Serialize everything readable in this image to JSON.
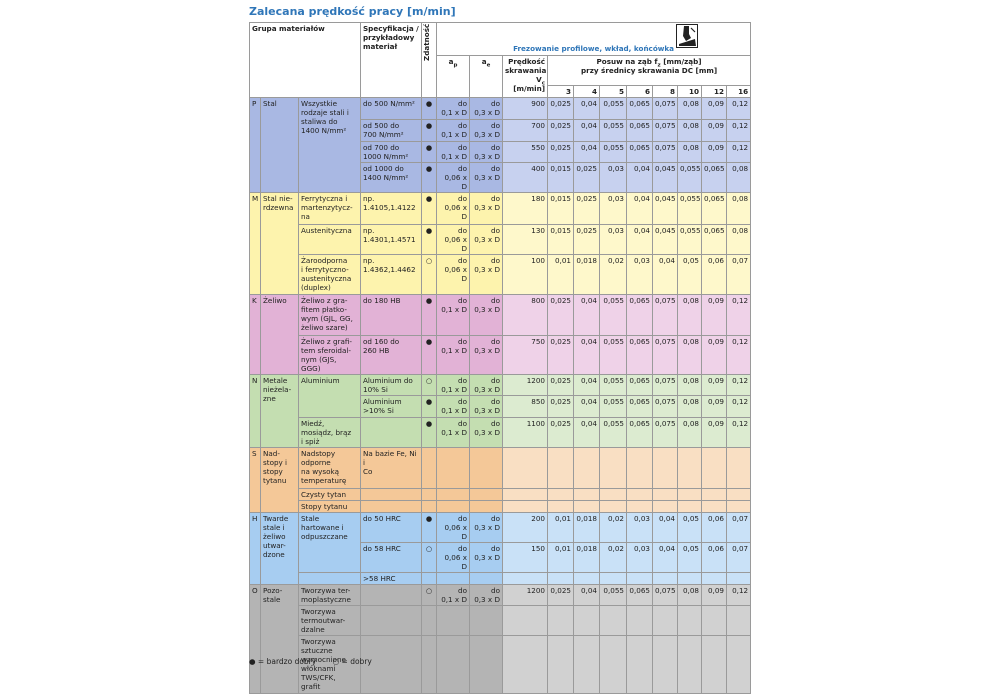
{
  "title": "Zalecana prędkość pracy [m/min]",
  "header": {
    "group": "Grupa materiałów",
    "spec": "Specyfikacja /\nprzykładowy\nmateriał",
    "suitability": "Zdatność",
    "operation": "Frezowanie profilowe, wkład, końcówka",
    "ap": {
      "main": "a",
      "sub": "p"
    },
    "ae": {
      "main": "a",
      "sub": "e"
    },
    "vc": {
      "line1": "Prędkość\nskrawania",
      "main": "V",
      "sub": "c",
      "unit": "[m/min]"
    },
    "feed": {
      "pre": "Posuw na ząb f",
      "sub": "z",
      "post": " [mm/ząb]",
      "line2": "przy średnicy skrawania DC [mm]"
    },
    "diameters": [
      3,
      4,
      5,
      6,
      8,
      10,
      12,
      16
    ]
  },
  "groups": [
    {
      "letter": "P",
      "name": "Stal",
      "color": "#a9b8e3",
      "light": "#c7d1ef",
      "subgroups": [
        {
          "name": "Wszystkie\nrodzaje stali i\nstaliwa do\n1400 N/mm²",
          "rows": [
            {
              "spec": "do 500 N/mm²",
              "suit": "●",
              "ap": "do\n0,1 x D",
              "ae": "do\n0,3 x D",
              "vc": 900,
              "fz": [
                "0,025",
                "0,04",
                "0,055",
                "0,065",
                "0,075",
                "0,08",
                "0,09",
                "0,12"
              ]
            },
            {
              "spec": "od 500 do\n700 N/mm²",
              "suit": "●",
              "ap": "do\n0,1 x D",
              "ae": "do\n0,3 x D",
              "vc": 700,
              "fz": [
                "0,025",
                "0,04",
                "0,055",
                "0,065",
                "0,075",
                "0,08",
                "0,09",
                "0,12"
              ]
            },
            {
              "spec": "od 700 do\n1000 N/mm²",
              "suit": "●",
              "ap": "do\n0,1 x D",
              "ae": "do\n0,3 x D",
              "vc": 550,
              "fz": [
                "0,025",
                "0,04",
                "0,055",
                "0,065",
                "0,075",
                "0,08",
                "0,09",
                "0,12"
              ]
            },
            {
              "spec": "od 1000 do\n1400 N/mm²",
              "suit": "●",
              "ap": "do\n0,06 x D",
              "ae": "do\n0,3 x D",
              "vc": 400,
              "fz": [
                "0,015",
                "0,025",
                "0,03",
                "0,04",
                "0,045",
                "0,055",
                "0,065",
                "0,08"
              ]
            }
          ]
        }
      ]
    },
    {
      "letter": "M",
      "name": "Stal nie-\nrdzewna",
      "color": "#fdf3ad",
      "light": "#fef8cb",
      "subgroups": [
        {
          "name": "Ferrytyczna i\nmartenzytycz-\nna",
          "rows": [
            {
              "spec": "np.\n1.4105,1.4122",
              "suit": "●",
              "ap": "do\n0,06 x D",
              "ae": "do\n0,3 x D",
              "vc": 180,
              "fz": [
                "0,015",
                "0,025",
                "0,03",
                "0,04",
                "0,045",
                "0,055",
                "0,065",
                "0,08"
              ]
            }
          ]
        },
        {
          "name": "Austenityczna",
          "rows": [
            {
              "spec": "np.\n1.4301,1.4571",
              "suit": "●",
              "ap": "do\n0,06 x D",
              "ae": "do\n0,3 x D",
              "vc": 130,
              "fz": [
                "0,015",
                "0,025",
                "0,03",
                "0,04",
                "0,045",
                "0,055",
                "0,065",
                "0,08"
              ]
            }
          ]
        },
        {
          "name": "Żaroodporna\ni ferrytyczno-\naustenityczna\n(duplex)",
          "rows": [
            {
              "spec": "np.\n1.4362,1.4462",
              "suit": "○",
              "ap": "do\n0,06 x D",
              "ae": "do\n0,3 x D",
              "vc": 100,
              "fz": [
                "0,01",
                "0,018",
                "0,02",
                "0,03",
                "0,04",
                "0,05",
                "0,06",
                "0,07"
              ]
            }
          ]
        }
      ]
    },
    {
      "letter": "K",
      "name": "Żeliwo",
      "color": "#e2b2d6",
      "light": "#efd2e8",
      "subgroups": [
        {
          "name": "Żeliwo z gra-\nfitem płatko-\nwym (GJL, GG,\nżeliwo szare)",
          "rows": [
            {
              "spec": "do 180 HB",
              "suit": "●",
              "ap": "do\n0,1 x D",
              "ae": "do\n0,3 x D",
              "vc": 800,
              "fz": [
                "0,025",
                "0,04",
                "0,055",
                "0,065",
                "0,075",
                "0,08",
                "0,09",
                "0,12"
              ]
            }
          ]
        },
        {
          "name": "Żeliwo z grafi-\ntem sferoidal-\nnym (GJS, GGG)",
          "rows": [
            {
              "spec": "od 160 do\n260 HB",
              "suit": "●",
              "ap": "do\n0,1 x D",
              "ae": "do\n0,3 x D",
              "vc": 750,
              "fz": [
                "0,025",
                "0,04",
                "0,055",
                "0,065",
                "0,075",
                "0,08",
                "0,09",
                "0,12"
              ]
            }
          ]
        }
      ]
    },
    {
      "letter": "N",
      "name": "Metale\nnieżela-\nzne",
      "color": "#c4deb1",
      "light": "#dcebd0",
      "subgroups": [
        {
          "name": "Aluminium",
          "rows": [
            {
              "spec": "Aluminium do\n10% Si",
              "suit": "○",
              "ap": "do\n0,1 x D",
              "ae": "do\n0,3 x D",
              "vc": 1200,
              "fz": [
                "0,025",
                "0,04",
                "0,055",
                "0,065",
                "0,075",
                "0,08",
                "0,09",
                "0,12"
              ]
            },
            {
              "spec": "Aluminium\n>10% Si",
              "suit": "●",
              "ap": "do\n0,1 x D",
              "ae": "do\n0,3 x D",
              "vc": 850,
              "fz": [
                "0,025",
                "0,04",
                "0,055",
                "0,065",
                "0,075",
                "0,08",
                "0,09",
                "0,12"
              ]
            }
          ]
        },
        {
          "name": "Miedź,\nmosiądz, brąz\ni spiż",
          "rows": [
            {
              "suit": "●",
              "ap": "do\n0,1 x D",
              "ae": "do\n0,3 x D",
              "vc": 1100,
              "fz": [
                "0,025",
                "0,04",
                "0,055",
                "0,065",
                "0,075",
                "0,08",
                "0,09",
                "0,12"
              ]
            }
          ]
        }
      ]
    },
    {
      "letter": "S",
      "name": "Nad-\nstopy i\nstopy\ntytanu",
      "color": "#f4c898",
      "light": "#f9dfc3",
      "subgroups": [
        {
          "name": "Nadstopy\nodporne\nna wysoką\ntemperaturę",
          "rows": [
            {
              "spec": "Na bazie Fe, Ni i\nCo"
            }
          ]
        },
        {
          "name": "Czysty tytan",
          "rows": [
            {}
          ]
        },
        {
          "name": "Stopy tytanu",
          "rows": [
            {}
          ]
        }
      ]
    },
    {
      "letter": "H",
      "name": "Twarde\nstale i\nżeliwo\nutwar-\ndzone",
      "color": "#a7cdf1",
      "light": "#c9e1f7",
      "subgroups": [
        {
          "name": "Stale\nhartowane i\nodpuszczane",
          "rows": [
            {
              "spec": "do 50 HRC",
              "suit": "●",
              "ap": "do\n0,06 x D",
              "ae": "do\n0,3 x D",
              "vc": 200,
              "fz": [
                "0,01",
                "0,018",
                "0,02",
                "0,03",
                "0,04",
                "0,05",
                "0,06",
                "0,07"
              ]
            },
            {
              "spec": "do 58 HRC",
              "suit": "○",
              "ap": "do\n0,06 x D",
              "ae": "do\n0,3 x D",
              "vc": 150,
              "fz": [
                "0,01",
                "0,018",
                "0,02",
                "0,03",
                "0,04",
                "0,05",
                "0,06",
                "0,07"
              ]
            }
          ]
        },
        {
          "rows": [
            {
              "spec": ">58 HRC"
            }
          ]
        }
      ]
    },
    {
      "letter": "O",
      "name": "Pozo-\nstale",
      "color": "#b4b4b4",
      "light": "#d1d1d1",
      "subgroups": [
        {
          "name": "Tworzywa ter-\nmoplastyczne",
          "rows": [
            {
              "suit": "○",
              "ap": "do\n0,1 x D",
              "ae": "do\n0,3 x D",
              "vc": 1200,
              "fz": [
                "0,025",
                "0,04",
                "0,055",
                "0,065",
                "0,075",
                "0,08",
                "0,09",
                "0,12"
              ]
            }
          ]
        },
        {
          "name": "Tworzywa\ntermoutwar-\ndzalne",
          "rows": [
            {}
          ]
        },
        {
          "name": "Tworzywa\nsztuczne\nwzmocnione\nwłóknami\nTWS/CFK,\ngrafit",
          "rows": [
            {}
          ]
        }
      ]
    }
  ],
  "legend": {
    "very_good": "● = bardzo dobry",
    "good": "○ = dobry"
  }
}
